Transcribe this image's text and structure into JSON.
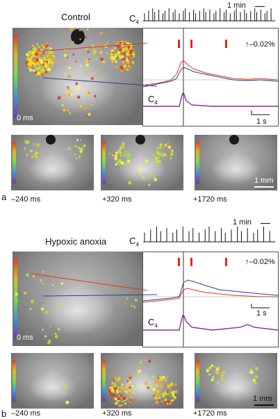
{
  "panel_a": {
    "letter": "a",
    "title": "Control",
    "burst_label": "C",
    "burst_sub": "4",
    "time_scale": "1 min",
    "amplitude": "–0.02%",
    "c4_label": "C",
    "c4_sub": "4",
    "frame_time_main": "0 ms",
    "time_bar": "1 s",
    "space_bar": "1 mm",
    "frame_times": [
      "–240 ms",
      "+320 ms",
      "+1720 ms"
    ]
  },
  "panel_b": {
    "letter": "b",
    "title": "Hypoxic anoxia",
    "burst_label": "C",
    "burst_sub": "4",
    "time_scale": "1 min",
    "amplitude": "–0.02%",
    "c4_label": "C",
    "c4_sub": "4",
    "frame_time_main": "0 ms",
    "time_bar": "1 s",
    "space_bar": "1 mm",
    "frame_times": [
      "–240 ms",
      "+320 ms",
      "+1720 ms"
    ]
  },
  "colors": {
    "red": "#e8321e",
    "blue": "#2a3d9c",
    "purple": "#8a2c9c",
    "marker": "#e3261b"
  }
}
